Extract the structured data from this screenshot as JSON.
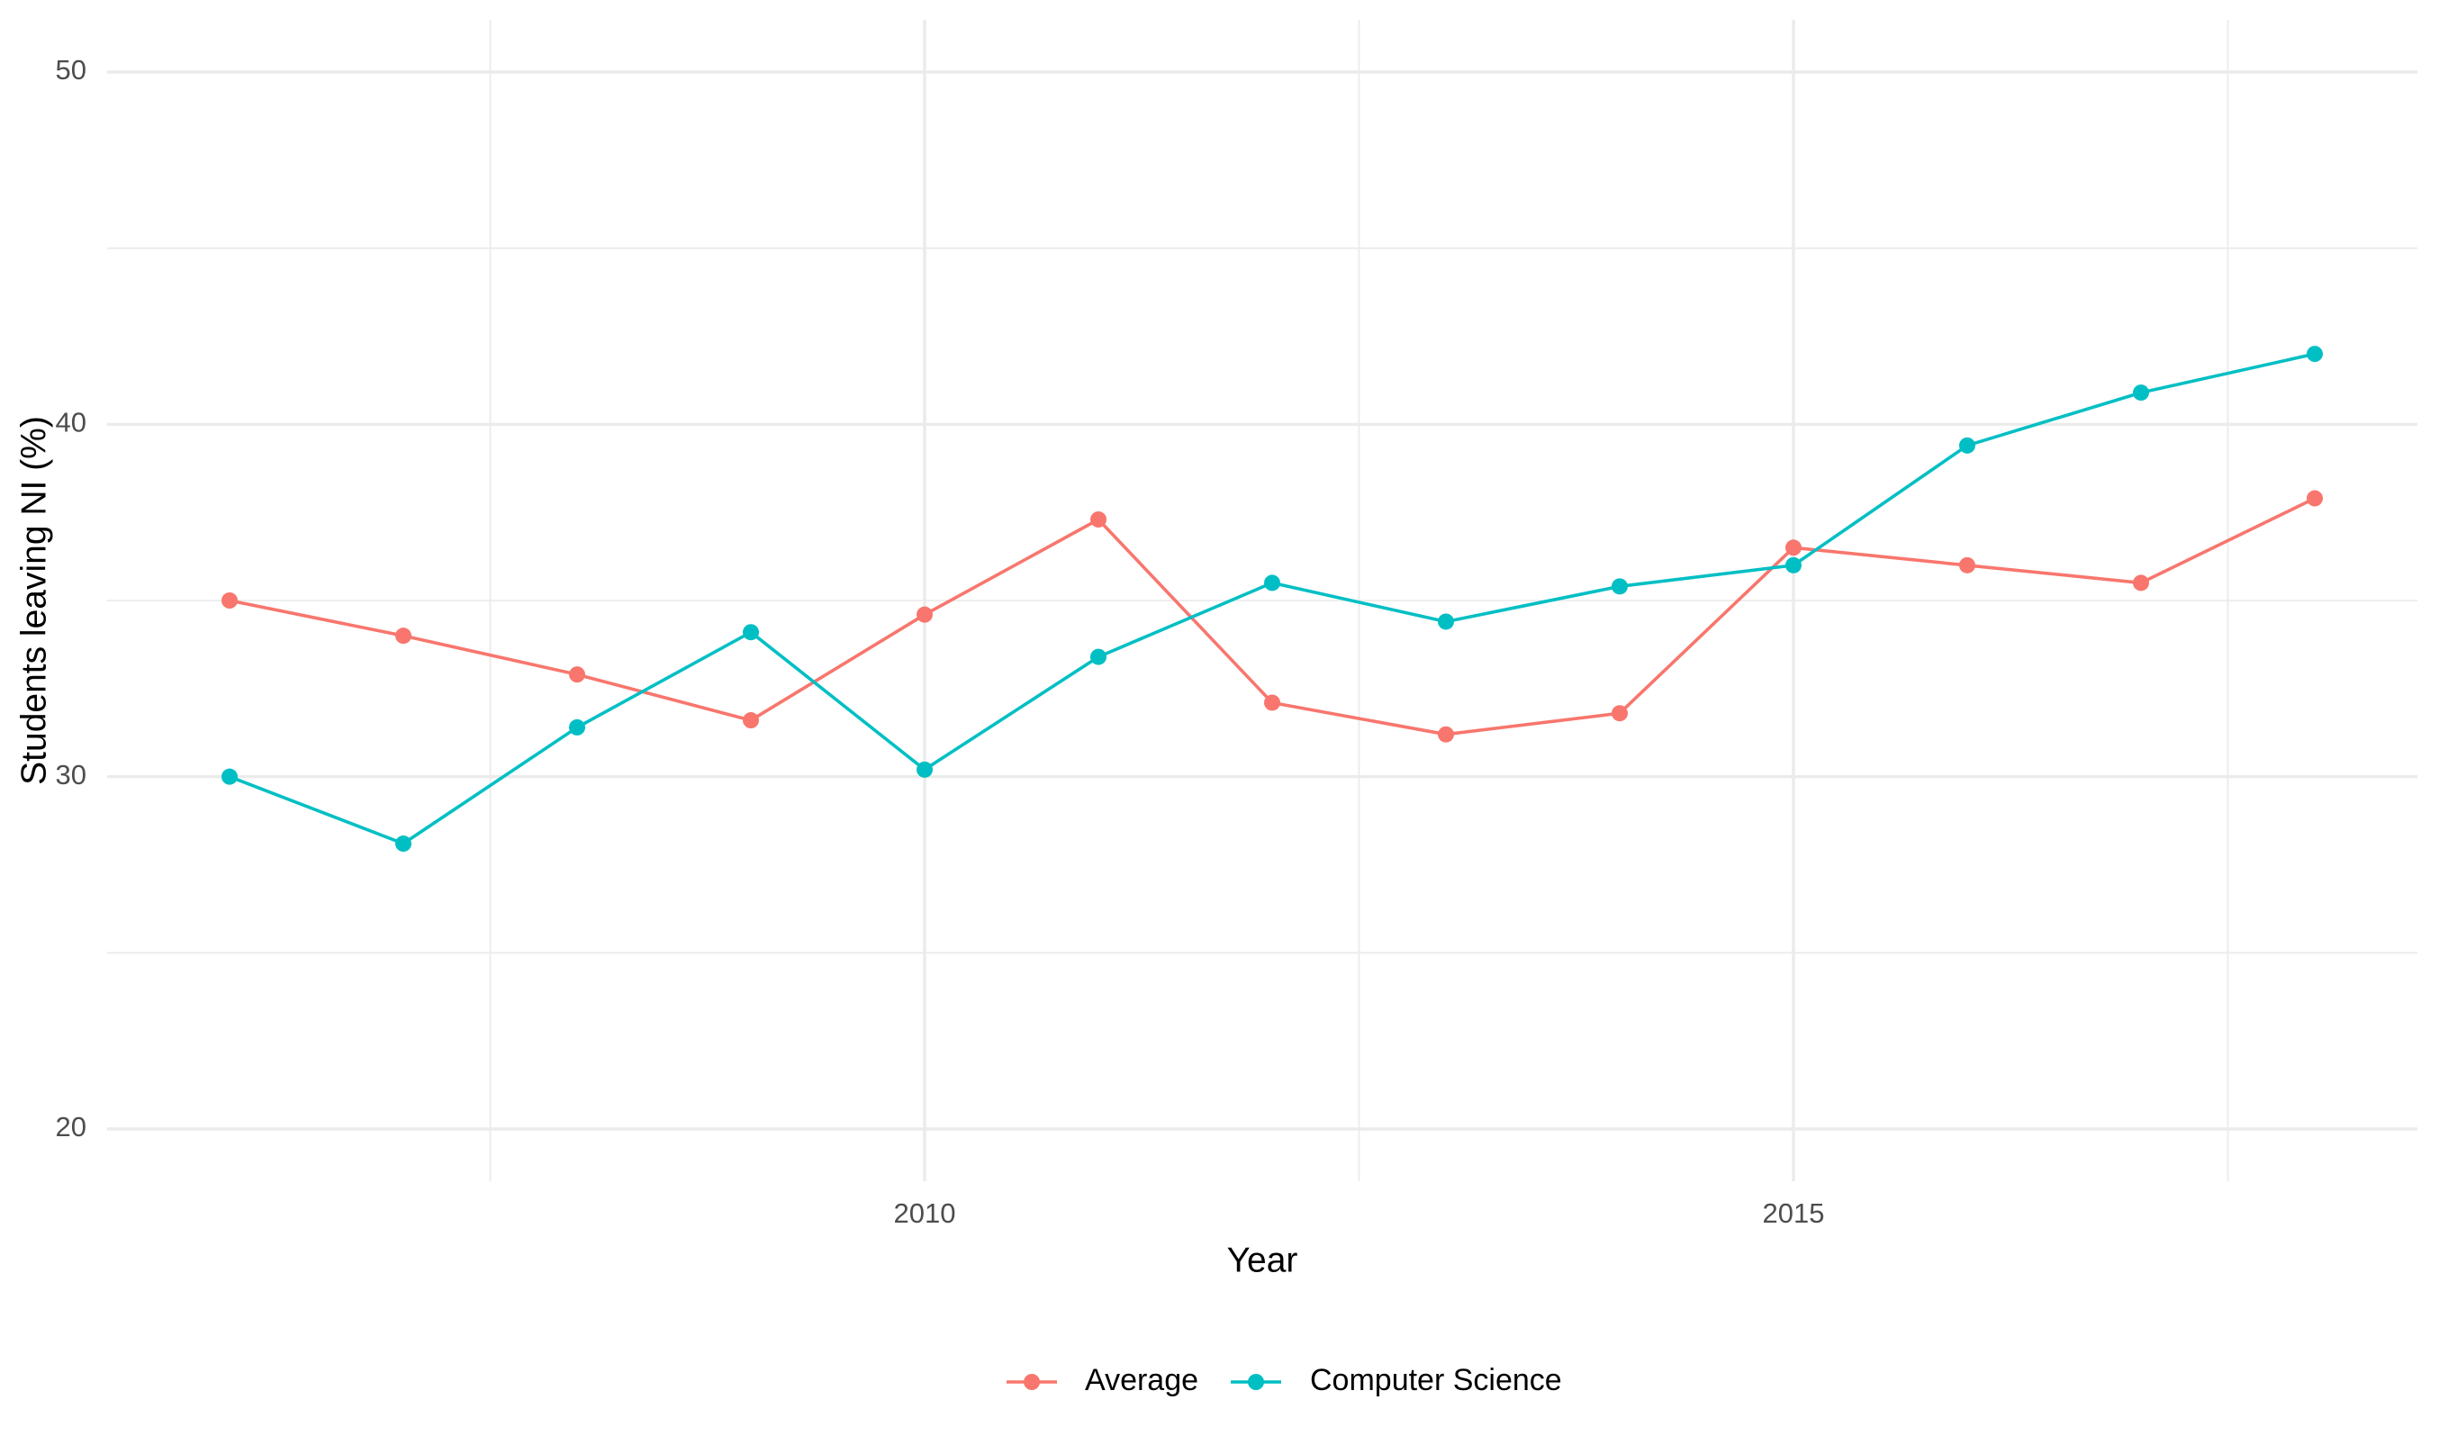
{
  "chart_data": {
    "type": "line",
    "title": "",
    "xlabel": "Year",
    "ylabel": "Students leaving NI (%)",
    "xlim": [
      2006,
      2018.4
    ],
    "ylim": [
      18.9,
      51.5
    ],
    "x_ticks": [
      2010,
      2015
    ],
    "x_minor_ticks": [
      2007.5,
      2012.5,
      2017.5
    ],
    "y_ticks": [
      20,
      30,
      40,
      50
    ],
    "y_minor_ticks": [
      25,
      35,
      45
    ],
    "grid": true,
    "legend_position": "bottom",
    "x": [
      2006,
      2007,
      2008,
      2009,
      2010,
      2011,
      2012,
      2013,
      2014,
      2015,
      2016,
      2017,
      2018
    ],
    "series": [
      {
        "name": "Average",
        "color": "#F8766D",
        "values": [
          35.0,
          34.0,
          32.9,
          31.6,
          34.6,
          37.3,
          32.1,
          31.2,
          31.8,
          36.5,
          36.0,
          35.5,
          37.9
        ]
      },
      {
        "name": "Computer Science",
        "color": "#00BFC4",
        "values": [
          30.0,
          28.1,
          31.4,
          34.1,
          30.2,
          33.4,
          35.5,
          34.4,
          35.4,
          36.0,
          39.4,
          40.9,
          42.0
        ]
      }
    ]
  }
}
